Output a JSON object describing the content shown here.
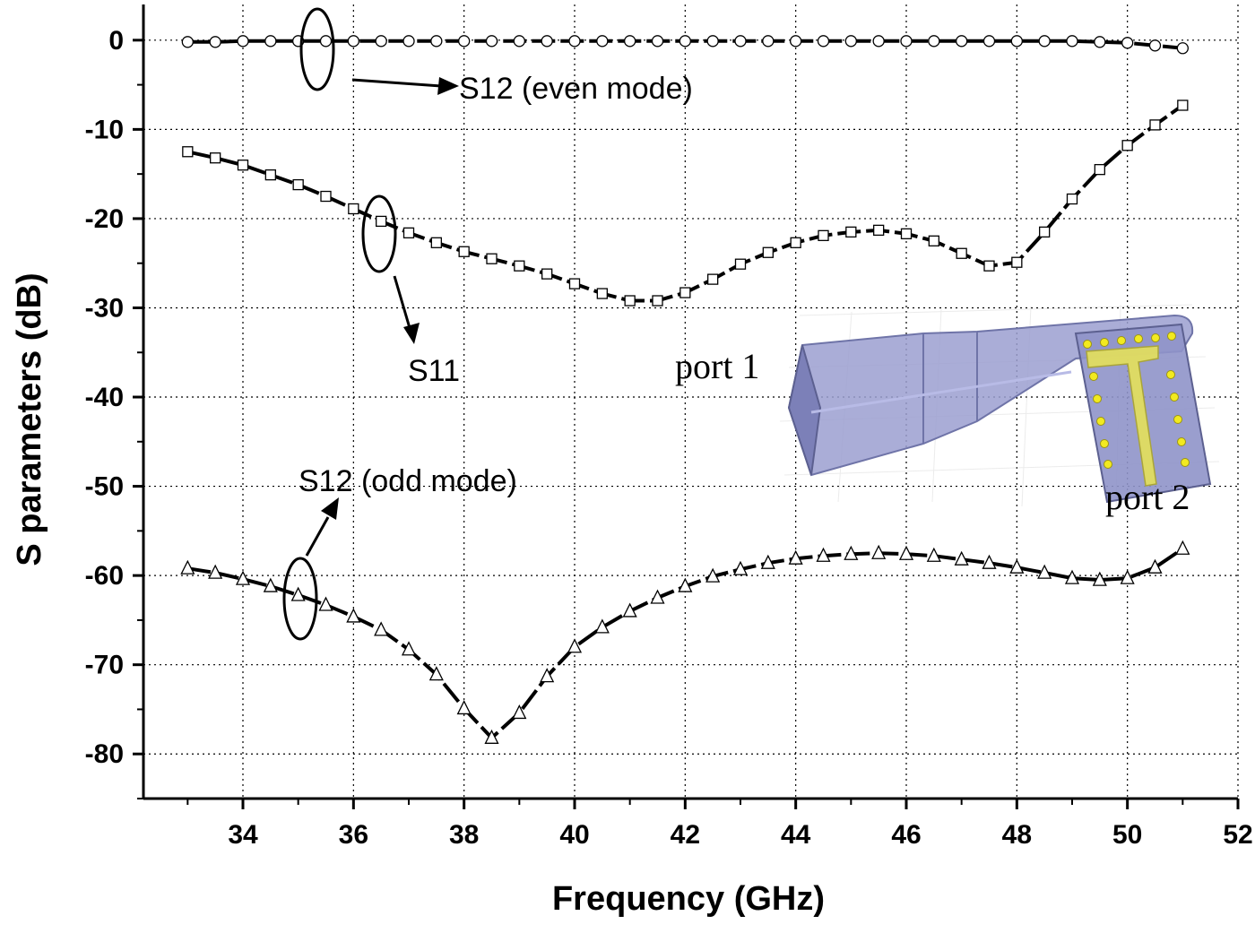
{
  "chart_data": {
    "type": "line",
    "xlabel": "Frequency (GHz)",
    "ylabel": "S parameters (dB)",
    "xlim": [
      32.2,
      52
    ],
    "ylim": [
      -85,
      4
    ],
    "xticks": [
      34,
      36,
      38,
      40,
      42,
      44,
      46,
      48,
      50,
      52
    ],
    "yticks": [
      0,
      -10,
      -20,
      -30,
      -40,
      -50,
      -60,
      -70,
      -80
    ],
    "grid": true,
    "x": [
      33,
      33.5,
      34,
      34.5,
      35,
      35.5,
      36,
      36.5,
      37,
      37.5,
      38,
      38.5,
      39,
      39.5,
      40,
      40.5,
      41,
      41.5,
      42,
      42.5,
      43,
      43.5,
      44,
      44.5,
      45,
      45.5,
      46,
      46.5,
      47,
      47.5,
      48,
      48.5,
      49,
      49.5,
      50,
      50.5,
      51
    ],
    "series": [
      {
        "name": "S12 (even mode)",
        "marker": "circle",
        "values": [
          -0.2,
          -0.2,
          -0.1,
          -0.1,
          -0.1,
          -0.1,
          -0.1,
          -0.1,
          -0.1,
          -0.1,
          -0.1,
          -0.1,
          -0.1,
          -0.1,
          -0.1,
          -0.1,
          -0.1,
          -0.1,
          -0.1,
          -0.1,
          -0.1,
          -0.1,
          -0.1,
          -0.1,
          -0.1,
          -0.1,
          -0.1,
          -0.1,
          -0.1,
          -0.1,
          -0.1,
          -0.1,
          -0.1,
          -0.2,
          -0.3,
          -0.6,
          -0.9
        ]
      },
      {
        "name": "S11",
        "marker": "square",
        "values": [
          -12.5,
          -13.2,
          -14.0,
          -15.1,
          -16.2,
          -17.5,
          -18.9,
          -20.3,
          -21.6,
          -22.7,
          -23.7,
          -24.5,
          -25.3,
          -26.2,
          -27.3,
          -28.4,
          -29.2,
          -29.2,
          -28.3,
          -26.8,
          -25.1,
          -23.8,
          -22.7,
          -21.9,
          -21.5,
          -21.3,
          -21.7,
          -22.5,
          -23.9,
          -25.3,
          -24.9,
          -21.5,
          -17.8,
          -14.5,
          -11.8,
          -9.5,
          -7.3
        ]
      },
      {
        "name": "S12 (odd mode)",
        "marker": "triangle",
        "values": [
          -59.2,
          -59.7,
          -60.4,
          -61.2,
          -62.2,
          -63.3,
          -64.6,
          -66.1,
          -68.3,
          -71.1,
          -74.9,
          -78.2,
          -75.4,
          -71.3,
          -68.0,
          -65.8,
          -64.0,
          -62.5,
          -61.2,
          -60.1,
          -59.3,
          -58.6,
          -58.1,
          -57.8,
          -57.6,
          -57.5,
          -57.6,
          -57.8,
          -58.2,
          -58.6,
          -59.1,
          -59.7,
          -60.3,
          -60.5,
          -60.3,
          -59.1,
          -57.0
        ]
      }
    ],
    "annotations": [
      {
        "text": "S12 (even mode)",
        "x": 38.15,
        "y": -5.8
      },
      {
        "text": "S11",
        "x": 37.2,
        "y": -37.5
      },
      {
        "text": "S12 (odd mode)",
        "x": 36.4,
        "y": -49.8
      }
    ]
  },
  "inset": {
    "port1_label": "port 1",
    "port2_label": "port 2",
    "colors": {
      "waveguide": "#9b9fd0",
      "waveguide_edge": "#6f74a8",
      "patch": "#e4e05a",
      "via": "#f2ea20"
    }
  }
}
